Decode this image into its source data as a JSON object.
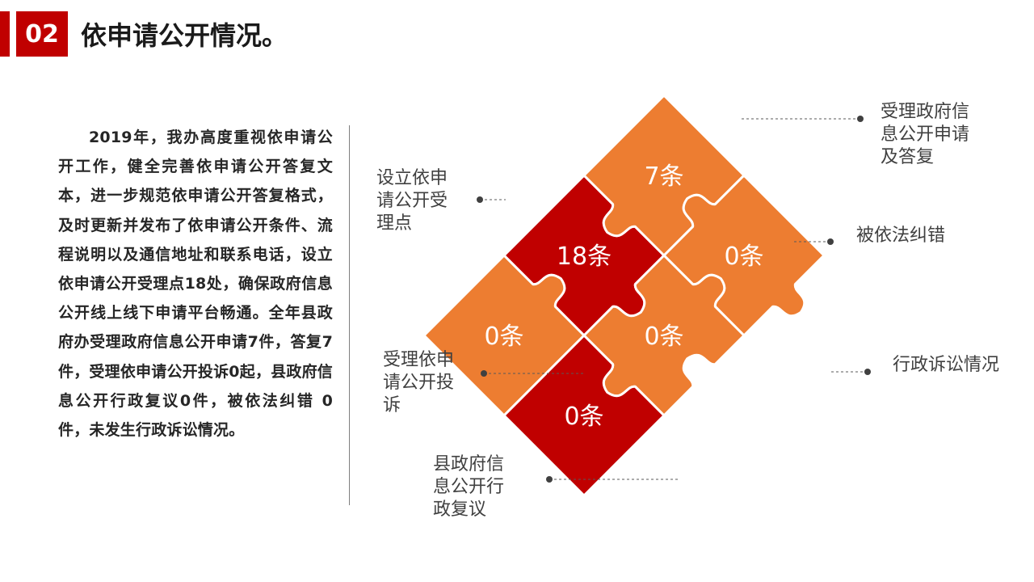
{
  "header": {
    "number": "02",
    "title": "依申请公开情况。"
  },
  "summary": "2019年，我办高度重视依申请公开工作，健全完善依申请公开答复文本，进一步规范依申请公开答复格式，及时更新并发布了依申请公开条件、流程说明以及通信地址和联系电话，设立依申请公开受理点18处，确保政府信息公开线上线下申请平台畅通。全年县政府办受理政府信息公开申请7件，答复7件，受理依申请公开投诉0起，县政府信息公开行政复议0件，被依法纠错 0 件，未发生行政诉讼情况。",
  "colors": {
    "red": "#c00000",
    "orange": "#ed7d31",
    "divider": "#7f7f7f"
  },
  "puzzle": {
    "pieces": [
      {
        "id": "receipt-points",
        "value": "18条",
        "label_lines": [
          "设立依申",
          "请公开受",
          "理点"
        ],
        "color": "red"
      },
      {
        "id": "gov-info-requests",
        "value": "7条",
        "label_lines": [
          "受理政府信",
          "息公开申请",
          "及答复"
        ],
        "color": "orange"
      },
      {
        "id": "legal-corrections",
        "value": "0条",
        "label_lines": [
          "被依法纠错"
        ],
        "color": "orange"
      },
      {
        "id": "complaints",
        "value": "0条",
        "label_lines": [
          "受理依申",
          "请公开投",
          "诉"
        ],
        "color": "orange"
      },
      {
        "id": "litigation",
        "value": "0条",
        "label_lines": [
          "行政诉讼情况"
        ],
        "color": "orange"
      },
      {
        "id": "admin-review",
        "value": "0条",
        "label_lines": [
          "县政府信",
          "息公开行",
          "政复议"
        ],
        "color": "red"
      }
    ]
  }
}
